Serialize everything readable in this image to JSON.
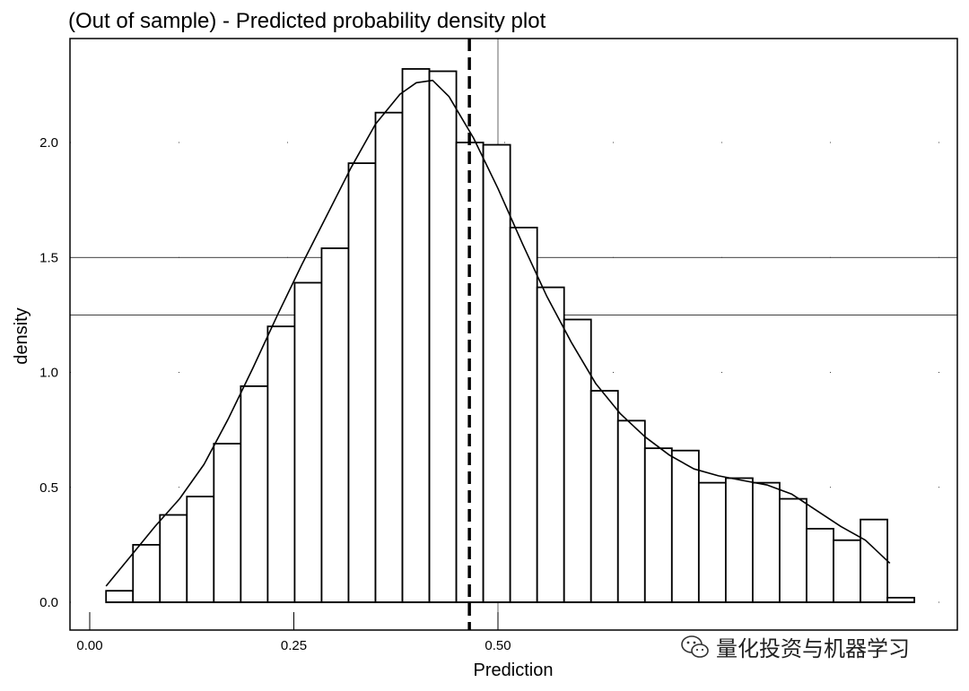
{
  "chart_data": {
    "type": "bar",
    "title": "(Out of sample) - Predicted probability density plot",
    "xlabel": "Prediction",
    "ylabel": "density",
    "xlim": [
      -0.02,
      1.05
    ],
    "ylim": [
      -0.12,
      2.5
    ],
    "xticks": [
      0.0,
      0.25,
      0.5
    ],
    "xtick_labels": [
      "0.00",
      "0.25",
      "0.50"
    ],
    "yticks": [
      0.0,
      0.5,
      1.0,
      1.5,
      2.0
    ],
    "ytick_labels": [
      "0.0",
      "0.5",
      "1.0",
      "1.5",
      "2.0"
    ],
    "bin_width": 0.033,
    "bins": [
      {
        "x": 0.02,
        "density": 0.05
      },
      {
        "x": 0.053,
        "density": 0.25
      },
      {
        "x": 0.086,
        "density": 0.38
      },
      {
        "x": 0.119,
        "density": 0.46
      },
      {
        "x": 0.152,
        "density": 0.69
      },
      {
        "x": 0.185,
        "density": 0.94
      },
      {
        "x": 0.218,
        "density": 1.2
      },
      {
        "x": 0.251,
        "density": 1.39
      },
      {
        "x": 0.284,
        "density": 1.54
      },
      {
        "x": 0.317,
        "density": 1.91
      },
      {
        "x": 0.35,
        "density": 2.13
      },
      {
        "x": 0.383,
        "density": 2.32
      },
      {
        "x": 0.416,
        "density": 2.31
      },
      {
        "x": 0.449,
        "density": 2.0
      },
      {
        "x": 0.482,
        "density": 1.99
      },
      {
        "x": 0.515,
        "density": 1.63
      },
      {
        "x": 0.548,
        "density": 1.37
      },
      {
        "x": 0.581,
        "density": 1.23
      },
      {
        "x": 0.614,
        "density": 0.92
      },
      {
        "x": 0.647,
        "density": 0.79
      },
      {
        "x": 0.68,
        "density": 0.67
      },
      {
        "x": 0.713,
        "density": 0.66
      },
      {
        "x": 0.746,
        "density": 0.52
      },
      {
        "x": 0.779,
        "density": 0.54
      },
      {
        "x": 0.812,
        "density": 0.52
      },
      {
        "x": 0.845,
        "density": 0.45
      },
      {
        "x": 0.878,
        "density": 0.32
      },
      {
        "x": 0.911,
        "density": 0.27
      },
      {
        "x": 0.944,
        "density": 0.36
      },
      {
        "x": 0.977,
        "density": 0.02
      }
    ],
    "density_curve": {
      "x": [
        0.02,
        0.05,
        0.08,
        0.11,
        0.14,
        0.17,
        0.2,
        0.23,
        0.26,
        0.29,
        0.32,
        0.35,
        0.38,
        0.4,
        0.42,
        0.44,
        0.47,
        0.5,
        0.53,
        0.56,
        0.59,
        0.62,
        0.65,
        0.68,
        0.71,
        0.74,
        0.77,
        0.8,
        0.83,
        0.86,
        0.89,
        0.92,
        0.95,
        0.98
      ],
      "y": [
        0.07,
        0.2,
        0.33,
        0.45,
        0.6,
        0.8,
        1.02,
        1.25,
        1.47,
        1.68,
        1.89,
        2.08,
        2.21,
        2.26,
        2.27,
        2.2,
        2.02,
        1.8,
        1.56,
        1.33,
        1.13,
        0.95,
        0.82,
        0.72,
        0.64,
        0.58,
        0.55,
        0.53,
        0.51,
        0.47,
        0.4,
        0.33,
        0.27,
        0.17
      ]
    },
    "vline": {
      "x": 0.465,
      "style": "dashed"
    },
    "grid": "sparse"
  },
  "watermark": {
    "text": "量化投资与机器学习",
    "icon": "wechat-icon"
  }
}
